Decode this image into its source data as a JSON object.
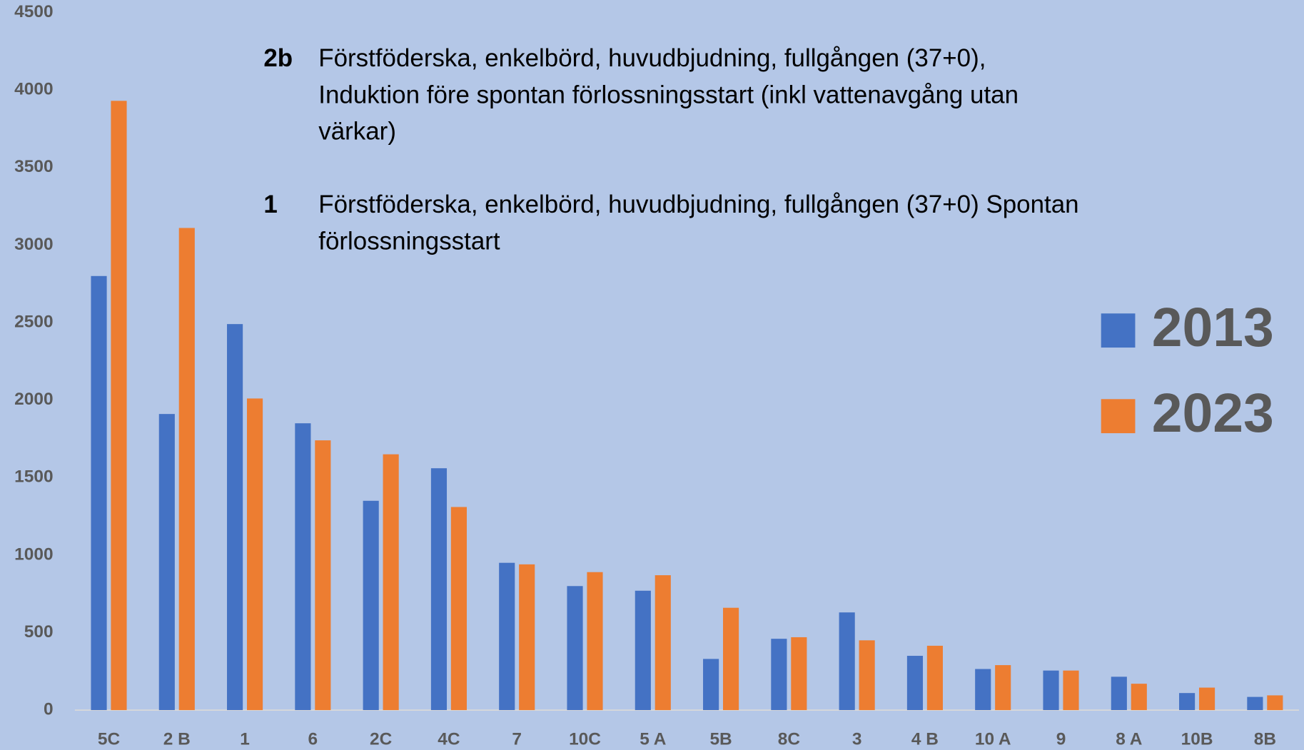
{
  "chart_data": {
    "type": "bar",
    "categories": [
      "5C",
      "2 B",
      "1",
      "6",
      "2C",
      "4C",
      "7",
      "10C",
      "5 A",
      "5B",
      "8C",
      "3",
      "4 B",
      "10 A",
      "9",
      "8 A",
      "10B",
      "8B"
    ],
    "series": [
      {
        "name": "2013",
        "color": "#4472c4",
        "values": [
          2800,
          1910,
          2490,
          1850,
          1350,
          1560,
          950,
          800,
          770,
          330,
          460,
          630,
          350,
          265,
          255,
          215,
          110,
          85
        ]
      },
      {
        "name": "2023",
        "color": "#ed7d31",
        "values": [
          3930,
          3110,
          2010,
          1740,
          1650,
          1310,
          940,
          890,
          870,
          660,
          470,
          450,
          415,
          290,
          255,
          170,
          145,
          95
        ]
      }
    ],
    "ylim": [
      0,
      4500
    ],
    "yticks": [
      0,
      500,
      1000,
      1500,
      2000,
      2500,
      3000,
      3500,
      4000,
      4500
    ],
    "grid": false,
    "legend": "right",
    "annotations": [
      {
        "code": "2b",
        "lines": [
          "Förstföderska, enkelbörd, huvudbjudning, fullgången (37+0),",
          "Induktion före spontan förlossningsstart (inkl vattenavgång utan",
          "värkar)"
        ]
      },
      {
        "code": "1",
        "lines": [
          "Förstföderska, enkelbörd, huvudbjudning, fullgången (37+0) Spontan",
          "förlossningsstart"
        ]
      }
    ]
  }
}
